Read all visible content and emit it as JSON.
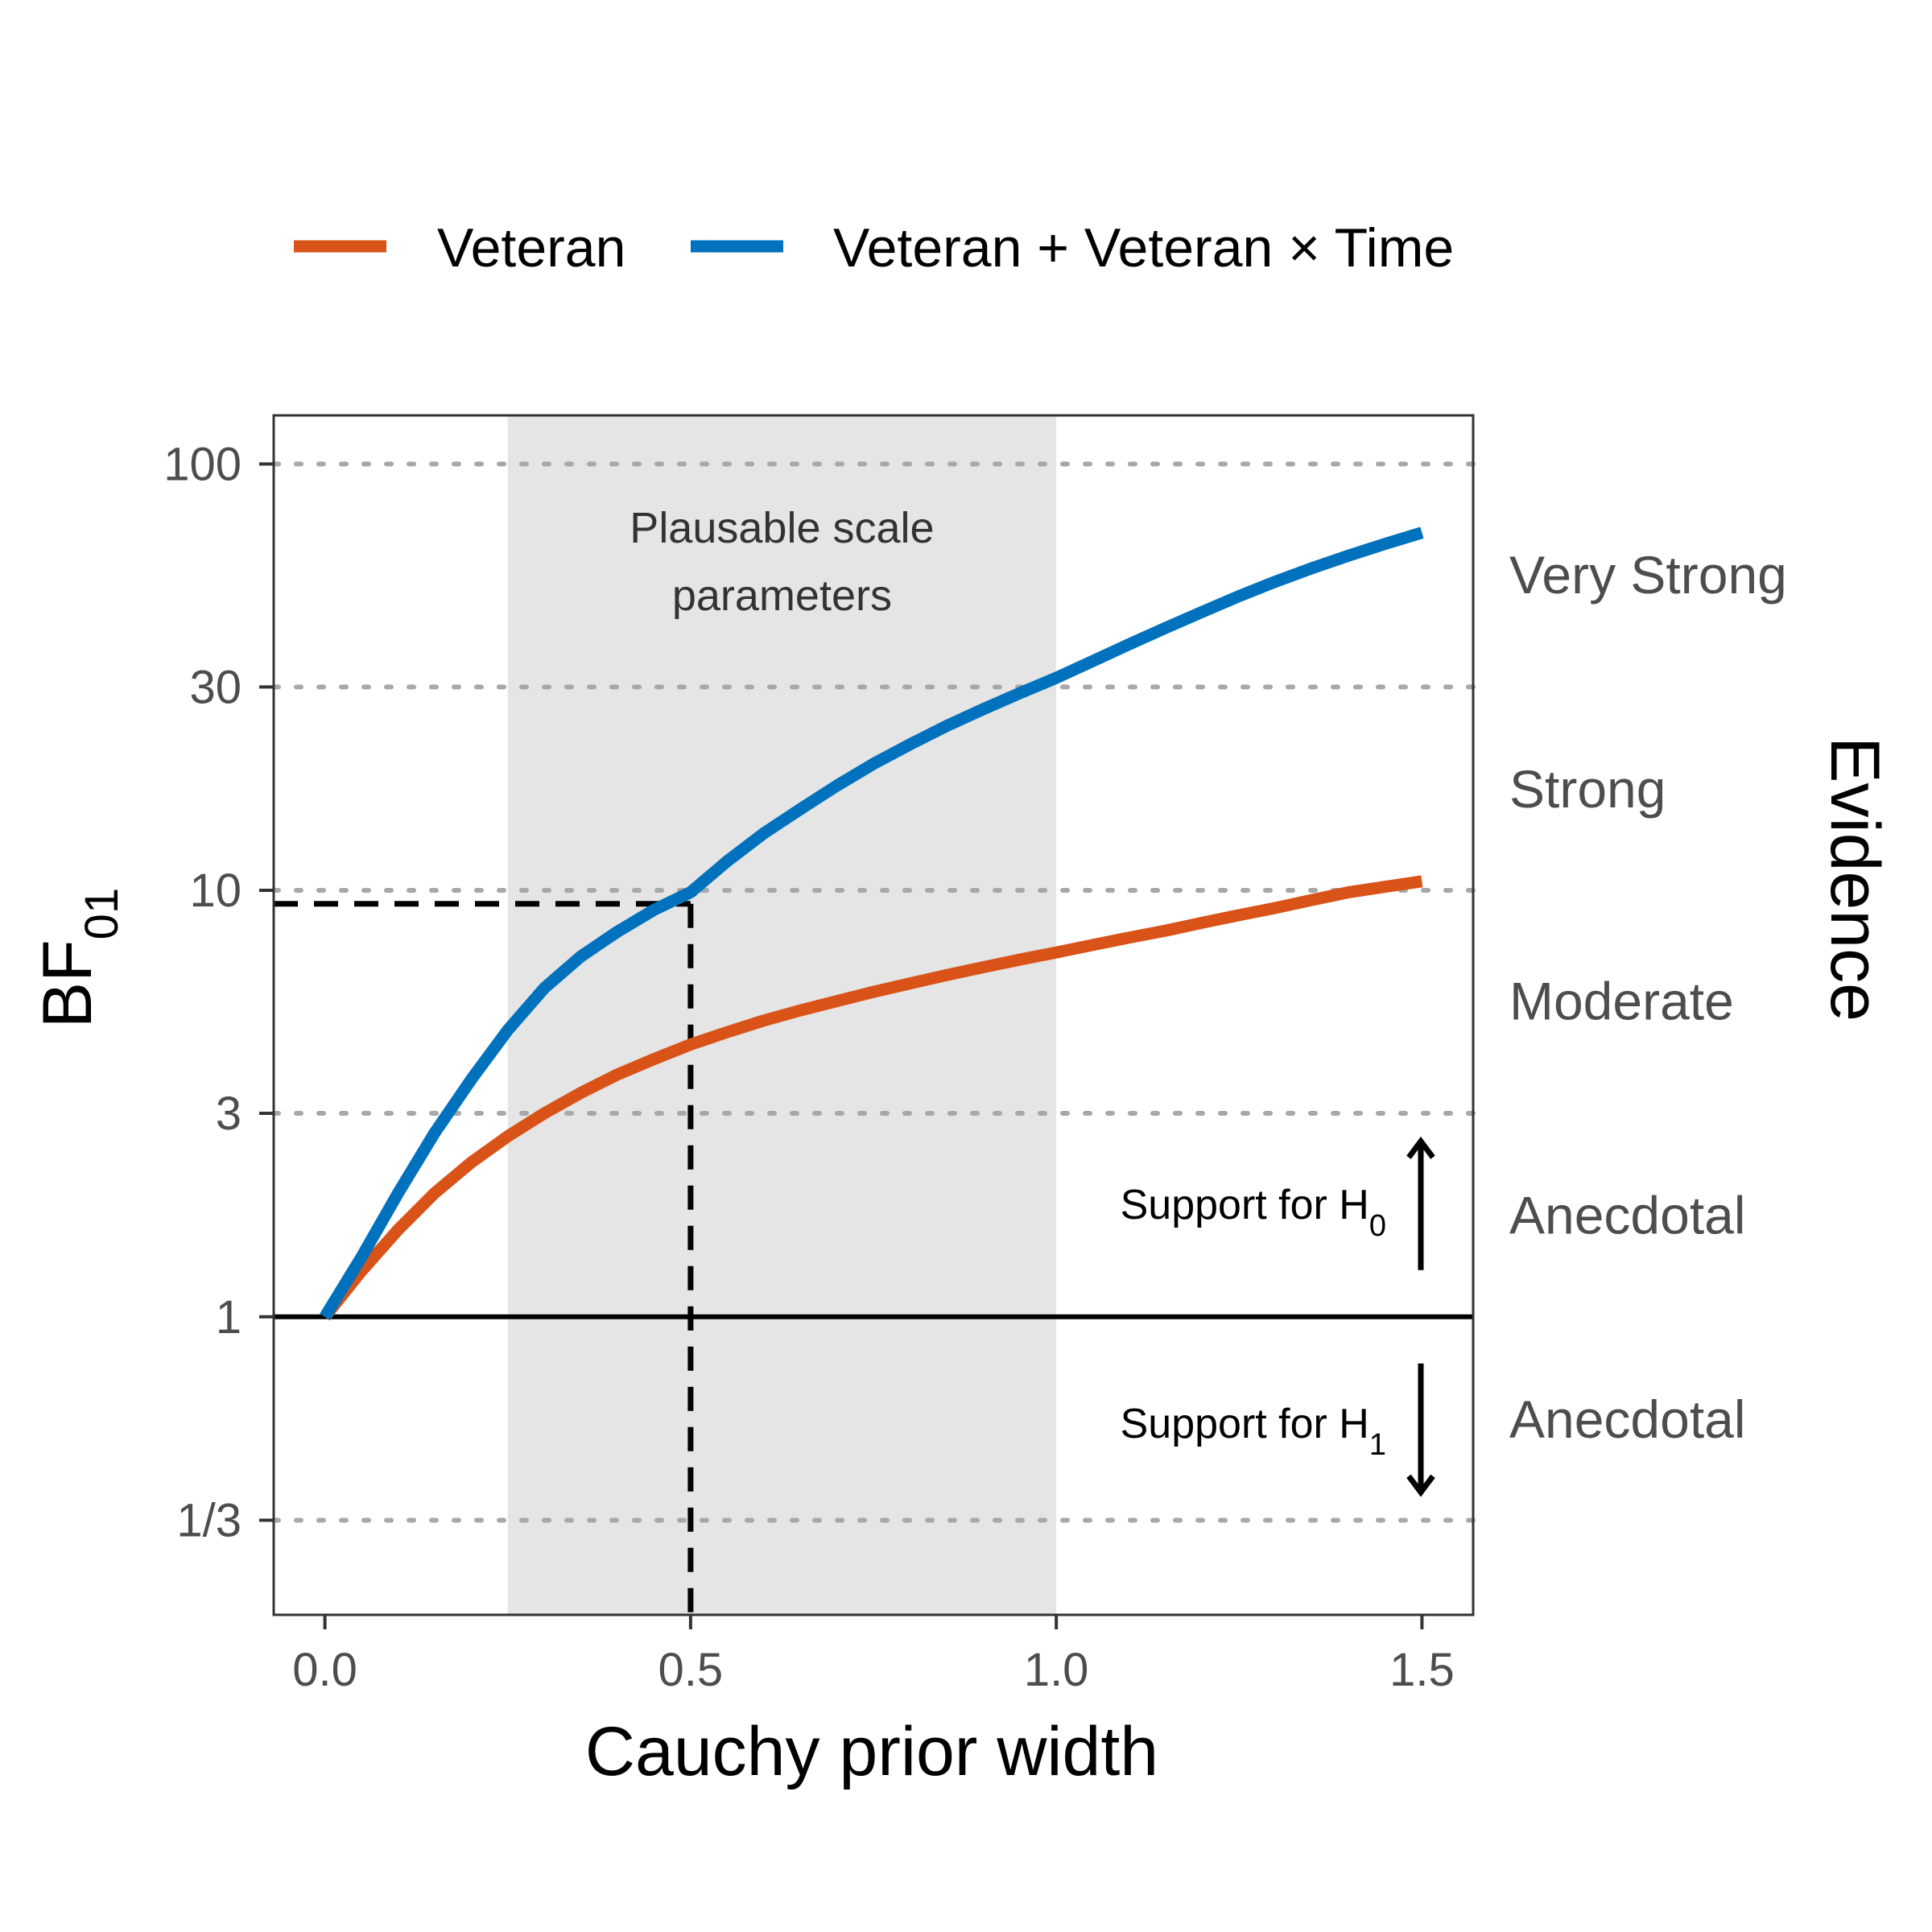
{
  "chart_data": {
    "type": "line",
    "xlabel": "Cauchy prior width",
    "ylabel_main": "BF",
    "ylabel_sub": "01",
    "right_axis_title": "Evidence",
    "y_scale": "log",
    "xlim": [
      -0.07,
      1.57
    ],
    "ylim": [
      0.2,
      130
    ],
    "x_ticks": [
      0.0,
      0.5,
      1.0,
      1.5
    ],
    "x_tick_labels": [
      "0.0",
      "0.5",
      "1.0",
      "1.5"
    ],
    "y_ticks": [
      0.3333,
      1,
      3,
      10,
      30,
      100
    ],
    "y_tick_labels": [
      "1/3",
      "1",
      "3",
      "10",
      "30",
      "100"
    ],
    "gridlines_y": [
      0.3333,
      3,
      10,
      30,
      100
    ],
    "reference_line_y": 1,
    "shaded_region": {
      "x": [
        0.25,
        1.0
      ],
      "label_line1": "Plausable scale",
      "label_line2": "parameters"
    },
    "dashed_guide": {
      "x": 0.5,
      "y": 9.3
    },
    "series": [
      {
        "name": "Veteran",
        "color": "#D95319",
        "x": [
          0.0,
          0.05,
          0.1,
          0.15,
          0.2,
          0.25,
          0.3,
          0.35,
          0.4,
          0.45,
          0.5,
          0.55,
          0.6,
          0.65,
          0.7,
          0.75,
          0.8,
          0.85,
          0.9,
          0.95,
          1.0,
          1.05,
          1.1,
          1.15,
          1.2,
          1.25,
          1.3,
          1.35,
          1.4,
          1.45,
          1.5
        ],
        "values": [
          1.0,
          1.28,
          1.6,
          1.95,
          2.3,
          2.65,
          3.0,
          3.35,
          3.7,
          4.02,
          4.35,
          4.65,
          4.95,
          5.23,
          5.5,
          5.78,
          6.05,
          6.33,
          6.6,
          6.88,
          7.15,
          7.45,
          7.75,
          8.05,
          8.4,
          8.75,
          9.1,
          9.5,
          9.9,
          10.2,
          10.5
        ]
      },
      {
        "name": "Veteran + Veteran × Time",
        "color": "#0072BD",
        "x": [
          0.0,
          0.05,
          0.1,
          0.15,
          0.2,
          0.25,
          0.3,
          0.35,
          0.4,
          0.45,
          0.5,
          0.55,
          0.6,
          0.65,
          0.7,
          0.75,
          0.8,
          0.85,
          0.9,
          0.95,
          1.0,
          1.05,
          1.1,
          1.15,
          1.2,
          1.25,
          1.3,
          1.35,
          1.4,
          1.45,
          1.5
        ],
        "values": [
          1.0,
          1.38,
          1.95,
          2.7,
          3.6,
          4.7,
          5.9,
          7.0,
          8.0,
          9.0,
          9.9,
          11.7,
          13.6,
          15.5,
          17.6,
          19.8,
          22.0,
          24.3,
          26.6,
          29.0,
          31.5,
          34.5,
          37.8,
          41.3,
          45.0,
          49.0,
          53.0,
          57.0,
          61.0,
          65.0,
          69.0
        ]
      }
    ],
    "evidence_bands": [
      {
        "label": "Very Strong",
        "y": 55
      },
      {
        "label": "Strong",
        "y": 17.3
      },
      {
        "label": "Moderate",
        "y": 5.5
      },
      {
        "label": "Anecdotal",
        "y": 1.73
      },
      {
        "label": "Anecdotal",
        "y": 0.575
      }
    ],
    "support_annotations": [
      {
        "prefix": "Support for H",
        "sub": "0",
        "direction": "up"
      },
      {
        "prefix": "Support for H",
        "sub": "1",
        "direction": "down"
      }
    ],
    "legend_position": "top"
  }
}
